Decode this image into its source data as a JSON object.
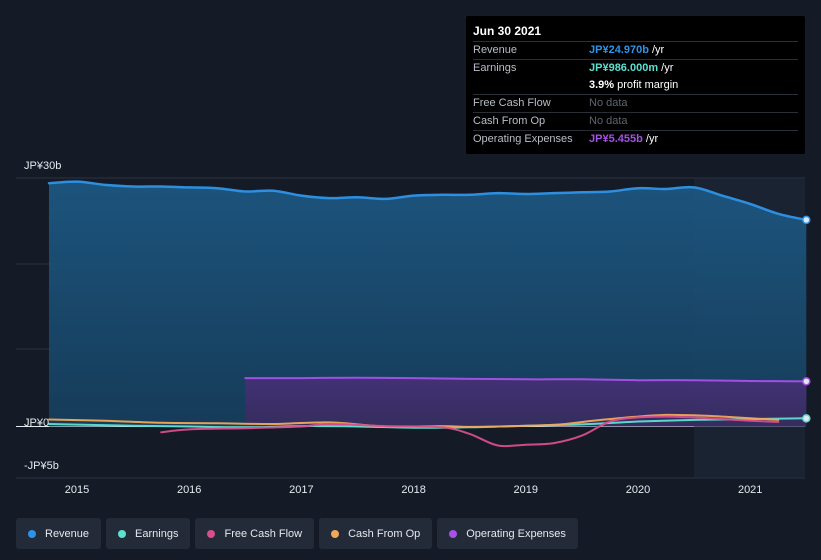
{
  "chart_data": {
    "type": "area",
    "x_range": [
      2014.7,
      2021.5
    ],
    "ylim": [
      -5,
      30
    ],
    "y_tick_labels": [
      "JP¥30b",
      "JP¥0",
      "-JP¥5b"
    ],
    "x_ticks": [
      "2015",
      "2016",
      "2017",
      "2018",
      "2019",
      "2020",
      "2021"
    ],
    "series": [
      {
        "name": "Revenue",
        "color": "#2e93e8",
        "points": [
          [
            2014.75,
            29.4
          ],
          [
            2015.0,
            29.6
          ],
          [
            2015.25,
            29.2
          ],
          [
            2015.5,
            29.0
          ],
          [
            2015.75,
            29.0
          ],
          [
            2016.0,
            28.9
          ],
          [
            2016.25,
            28.8
          ],
          [
            2016.5,
            28.4
          ],
          [
            2016.75,
            28.5
          ],
          [
            2017.0,
            27.9
          ],
          [
            2017.25,
            27.6
          ],
          [
            2017.5,
            27.7
          ],
          [
            2017.75,
            27.5
          ],
          [
            2018.0,
            27.9
          ],
          [
            2018.25,
            28.0
          ],
          [
            2018.5,
            28.0
          ],
          [
            2018.75,
            28.2
          ],
          [
            2019.0,
            28.1
          ],
          [
            2019.25,
            28.2
          ],
          [
            2019.5,
            28.3
          ],
          [
            2019.75,
            28.4
          ],
          [
            2020.0,
            28.8
          ],
          [
            2020.25,
            28.7
          ],
          [
            2020.5,
            28.9
          ],
          [
            2020.75,
            27.9
          ],
          [
            2021.0,
            26.9
          ],
          [
            2021.25,
            25.7
          ],
          [
            2021.5,
            24.97
          ]
        ]
      },
      {
        "name": "Operating Expenses",
        "color": "#a651e8",
        "points": [
          [
            2016.5,
            5.85
          ],
          [
            2017.0,
            5.85
          ],
          [
            2017.5,
            5.9
          ],
          [
            2018.0,
            5.85
          ],
          [
            2018.5,
            5.75
          ],
          [
            2019.0,
            5.7
          ],
          [
            2019.5,
            5.7
          ],
          [
            2020.0,
            5.6
          ],
          [
            2020.5,
            5.6
          ],
          [
            2021.0,
            5.5
          ],
          [
            2021.5,
            5.455
          ]
        ]
      },
      {
        "name": "Earnings",
        "color": "#5ce0d0",
        "points": [
          [
            2014.75,
            0.3
          ],
          [
            2015.5,
            0.1
          ],
          [
            2016.0,
            0.0
          ],
          [
            2016.5,
            -0.1
          ],
          [
            2017.0,
            0.05
          ],
          [
            2017.5,
            0.0
          ],
          [
            2018.0,
            -0.15
          ],
          [
            2018.5,
            -0.1
          ],
          [
            2019.0,
            0.1
          ],
          [
            2019.5,
            0.25
          ],
          [
            2020.0,
            0.6
          ],
          [
            2020.5,
            0.8
          ],
          [
            2021.0,
            0.9
          ],
          [
            2021.5,
            0.986
          ]
        ]
      },
      {
        "name": "Cash From Op",
        "color": "#f0a85a",
        "points": [
          [
            2014.75,
            0.85
          ],
          [
            2015.25,
            0.7
          ],
          [
            2015.75,
            0.45
          ],
          [
            2016.25,
            0.4
          ],
          [
            2016.75,
            0.3
          ],
          [
            2017.25,
            0.5
          ],
          [
            2017.75,
            0.0
          ],
          [
            2018.25,
            0.05
          ],
          [
            2018.5,
            -0.05
          ],
          [
            2018.75,
            0.0
          ],
          [
            2019.25,
            0.2
          ],
          [
            2019.6,
            0.7
          ],
          [
            2020.0,
            1.2
          ],
          [
            2020.25,
            1.4
          ],
          [
            2020.5,
            1.35
          ],
          [
            2020.75,
            1.2
          ],
          [
            2021.0,
            1.0
          ],
          [
            2021.25,
            0.8
          ]
        ]
      },
      {
        "name": "Free Cash Flow",
        "color": "#d84e8c",
        "points": [
          [
            2015.75,
            -0.7
          ],
          [
            2016.0,
            -0.35
          ],
          [
            2016.5,
            -0.2
          ],
          [
            2017.0,
            0.0
          ],
          [
            2017.25,
            0.3
          ],
          [
            2017.75,
            0.05
          ],
          [
            2018.25,
            -0.1
          ],
          [
            2018.5,
            -0.9
          ],
          [
            2018.75,
            -2.3
          ],
          [
            2019.0,
            -2.2
          ],
          [
            2019.25,
            -2.0
          ],
          [
            2019.5,
            -1.1
          ],
          [
            2019.75,
            0.6
          ],
          [
            2020.0,
            1.1
          ],
          [
            2020.25,
            1.2
          ],
          [
            2020.5,
            1.1
          ],
          [
            2020.75,
            0.9
          ],
          [
            2021.0,
            0.7
          ],
          [
            2021.25,
            0.55
          ]
        ]
      }
    ],
    "highlight_from": 2020.5,
    "legend_position": "bottom"
  },
  "tooltip": {
    "date": "Jun 30 2021",
    "rows": [
      {
        "label": "Revenue",
        "value": "JP¥24.970b",
        "unit": " /yr",
        "color": "#2e93e8"
      },
      {
        "label": "Earnings",
        "value": "JP¥986.000m",
        "unit": " /yr",
        "color": "#5ce0d0"
      },
      {
        "label": "",
        "value": "3.9%",
        "unit": " profit margin",
        "color": "#ffffff"
      },
      {
        "label": "Free Cash Flow",
        "value": "No data",
        "unit": "",
        "color": "#5e6570"
      },
      {
        "label": "Cash From Op",
        "value": "No data",
        "unit": "",
        "color": "#5e6570"
      },
      {
        "label": "Operating Expenses",
        "value": "JP¥5.455b",
        "unit": " /yr",
        "color": "#a651e8"
      }
    ]
  },
  "legend": [
    {
      "label": "Revenue",
      "color": "#2e93e8"
    },
    {
      "label": "Earnings",
      "color": "#5ce0d0"
    },
    {
      "label": "Free Cash Flow",
      "color": "#d84e8c"
    },
    {
      "label": "Cash From Op",
      "color": "#f0a85a"
    },
    {
      "label": "Operating Expenses",
      "color": "#a651e8"
    }
  ]
}
